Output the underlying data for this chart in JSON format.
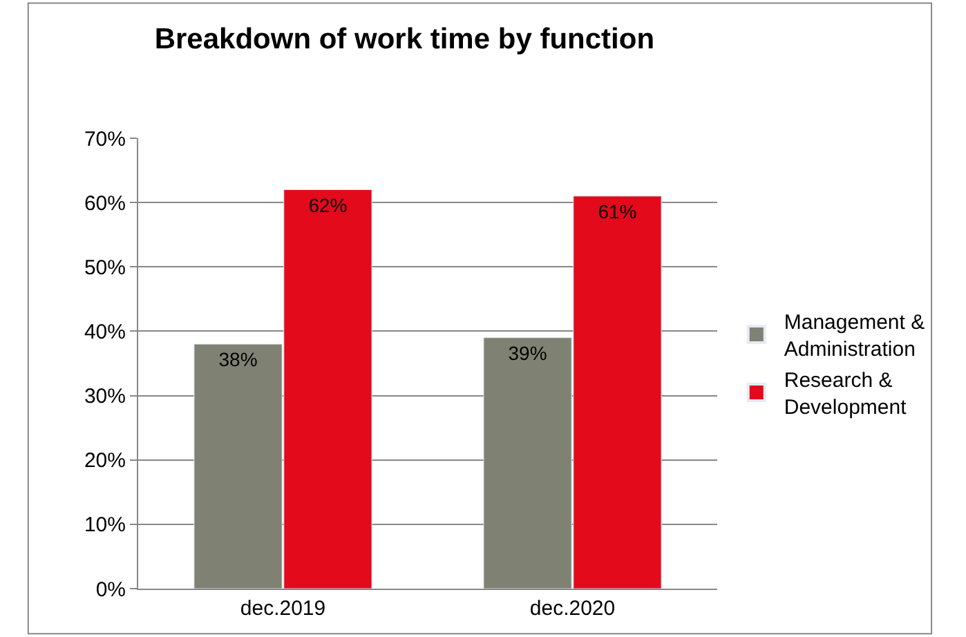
{
  "chart_data": {
    "type": "bar",
    "title": "Breakdown of work time by function",
    "categories": [
      "dec.2019",
      "dec.2020"
    ],
    "series": [
      {
        "name": "Management & Administration",
        "color": "#7f8272",
        "values": [
          38,
          39
        ],
        "value_labels": [
          "38%",
          "39%"
        ]
      },
      {
        "name": "Research & Development",
        "color": "#e30a1c",
        "values": [
          62,
          61
        ],
        "value_labels": [
          "62%",
          "61%"
        ]
      }
    ],
    "ylim": [
      0,
      70
    ],
    "yticks": [
      {
        "value": 0,
        "label": "0%"
      },
      {
        "value": 10,
        "label": "10%"
      },
      {
        "value": 20,
        "label": "20%"
      },
      {
        "value": 30,
        "label": "30%"
      },
      {
        "value": 40,
        "label": "40%"
      },
      {
        "value": 50,
        "label": "50%"
      },
      {
        "value": 60,
        "label": "60%"
      },
      {
        "value": 70,
        "label": "70%"
      }
    ],
    "grid": "y",
    "legend": "right"
  }
}
